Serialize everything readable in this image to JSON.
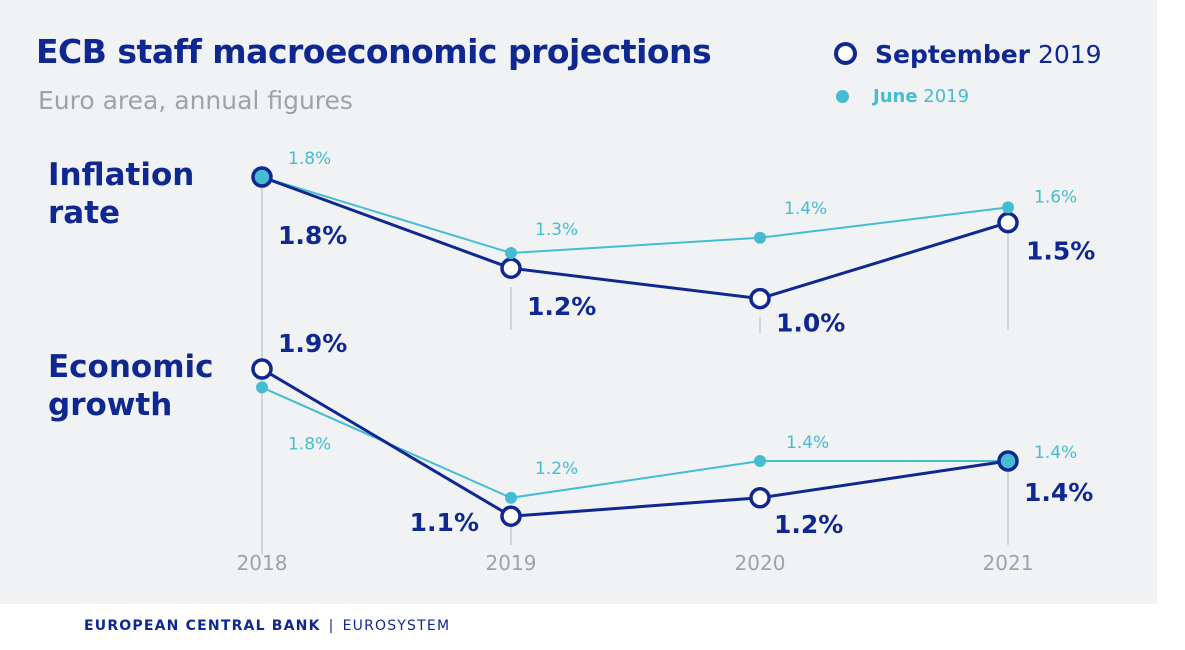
{
  "header": {
    "title": "ECB staff macroeconomic projections",
    "subtitle": "Euro area, annual figures"
  },
  "legend": {
    "september": {
      "bold": "September",
      "rest": "2019"
    },
    "june": {
      "bold": "June",
      "rest": "2019"
    }
  },
  "sections": {
    "inflation": {
      "line1": "Inflation",
      "line2": "rate"
    },
    "growth": {
      "line1": "Economic",
      "line2": "growth"
    }
  },
  "footer": {
    "bank": "EUROPEAN CENTRAL BANK",
    "separator": "|",
    "system": "EUROSYSTEM"
  },
  "colors": {
    "september": "#0f2891",
    "june": "#45bcd2",
    "grid": "#c8cbcf",
    "axis_text": "#9ea3a8"
  },
  "chart_data": [
    {
      "type": "line",
      "title": "Inflation rate",
      "x": [
        "2018",
        "2019",
        "2020",
        "2021"
      ],
      "series": [
        {
          "name": "September 2019",
          "values": [
            1.8,
            1.2,
            1.0,
            1.5
          ],
          "labels": [
            "1.8%",
            "1.2%",
            "1.0%",
            "1.5%"
          ]
        },
        {
          "name": "June 2019",
          "values": [
            1.8,
            1.3,
            1.4,
            1.6
          ],
          "labels": [
            "1.8%",
            "1.3%",
            "1.4%",
            "1.6%"
          ]
        }
      ],
      "grid": false,
      "legend": "top-right"
    },
    {
      "type": "line",
      "title": "Economic growth",
      "x": [
        "2018",
        "2019",
        "2020",
        "2021"
      ],
      "series": [
        {
          "name": "September 2019",
          "values": [
            1.9,
            1.1,
            1.2,
            1.4
          ],
          "labels": [
            "1.9%",
            "1.1%",
            "1.2%",
            "1.4%"
          ]
        },
        {
          "name": "June 2019",
          "values": [
            1.8,
            1.2,
            1.4,
            1.4
          ],
          "labels": [
            "1.8%",
            "1.2%",
            "1.4%",
            "1.4%"
          ]
        }
      ],
      "grid": false,
      "legend": "top-right"
    }
  ]
}
